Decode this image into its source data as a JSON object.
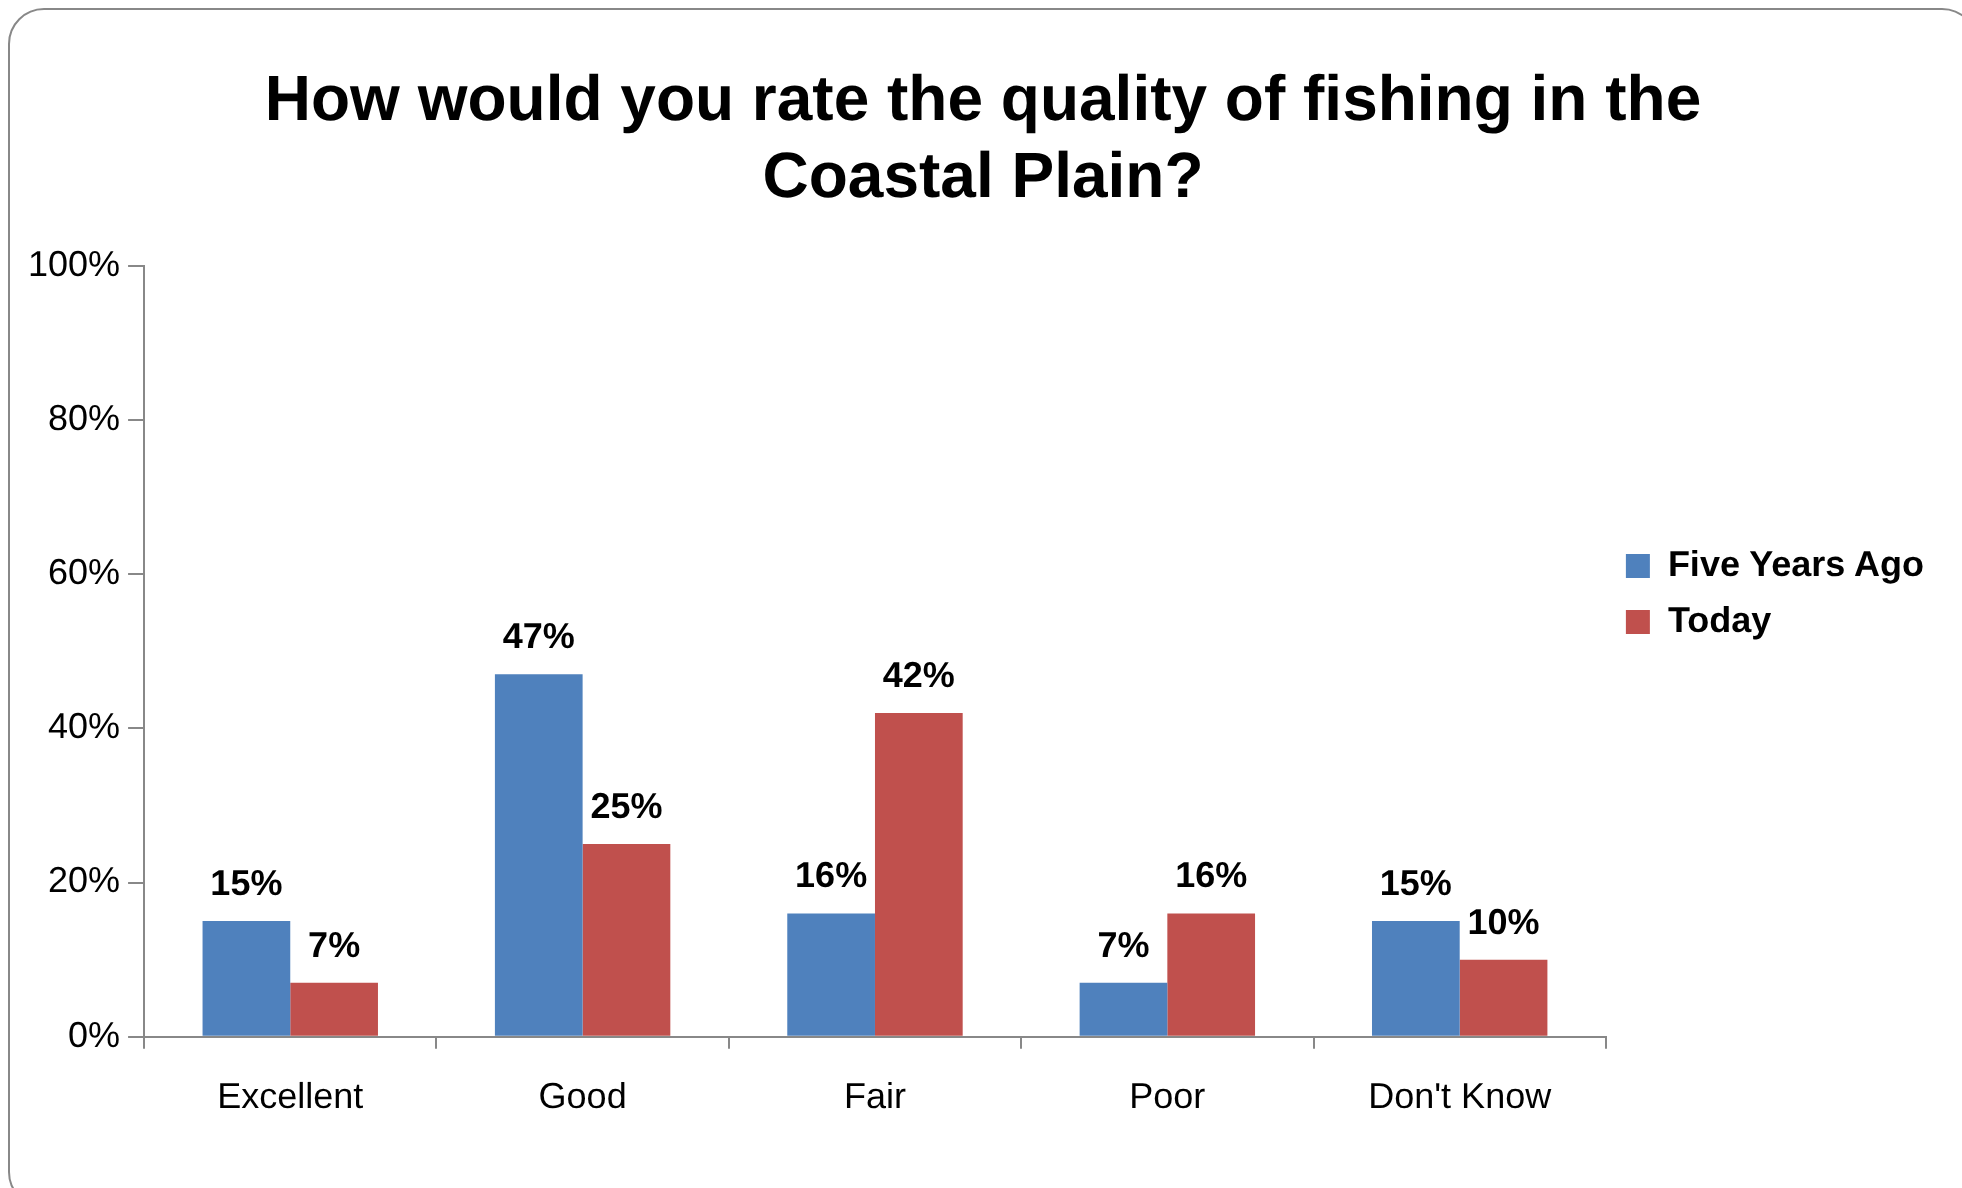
{
  "chart_data": {
    "type": "bar",
    "title": "How would you rate the quality of fishing in the Coastal Plain?",
    "categories": [
      "Excellent",
      "Good",
      "Fair",
      "Poor",
      "Don't Know"
    ],
    "series": [
      {
        "name": "Five Years Ago",
        "color": "#4f81bd",
        "values": [
          15,
          47,
          16,
          7,
          15
        ],
        "value_labels": [
          "15%",
          "47%",
          "16%",
          "7%",
          "15%"
        ]
      },
      {
        "name": "Today",
        "color": "#c0504d",
        "values": [
          7,
          25,
          42,
          16,
          10
        ],
        "value_labels": [
          "7%",
          "25%",
          "42%",
          "16%",
          "10%"
        ]
      }
    ],
    "ylim": [
      0,
      100
    ],
    "yticks": [
      {
        "value": 0,
        "label": "0%"
      },
      {
        "value": 20,
        "label": "20%"
      },
      {
        "value": 40,
        "label": "40%"
      },
      {
        "value": 60,
        "label": "60%"
      },
      {
        "value": 80,
        "label": "80%"
      },
      {
        "value": 100,
        "label": "100%"
      }
    ],
    "grid": false,
    "legend": "right"
  }
}
